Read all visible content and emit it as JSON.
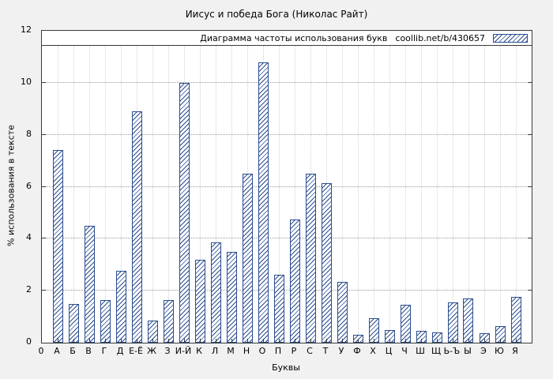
{
  "chart_data": {
    "type": "bar",
    "title": "Иисус и победа Бога (Николас Райт)",
    "legend": {
      "text": "Диаграмма частоты использования букв",
      "link": "coollib.net/b/430657"
    },
    "xlabel": "Буквы",
    "ylabel": "% использования в тексте",
    "origin_label": "0",
    "categories": [
      "А",
      "Б",
      "В",
      "Г",
      "Д",
      "Е-Ё",
      "Ж",
      "З",
      "И-Й",
      "К",
      "Л",
      "М",
      "Н",
      "О",
      "П",
      "Р",
      "С",
      "Т",
      "У",
      "Ф",
      "Х",
      "Ц",
      "Ч",
      "Ш",
      "Щ",
      "Ь-Ъ",
      "Ы",
      "Э",
      "Ю",
      "Я"
    ],
    "values": [
      7.4,
      1.5,
      4.5,
      1.65,
      2.75,
      8.9,
      0.85,
      1.65,
      10.0,
      3.2,
      3.85,
      3.5,
      6.5,
      10.8,
      2.6,
      4.75,
      6.5,
      6.15,
      2.35,
      0.3,
      0.95,
      0.5,
      1.45,
      0.45,
      0.4,
      1.55,
      1.7,
      0.35,
      0.65,
      1.75
    ],
    "ylim": [
      0,
      12
    ],
    "yticks": [
      0,
      2,
      4,
      6,
      8,
      10,
      12
    ],
    "grid": true,
    "legend_position": "top",
    "bar_color": "#2b4d8e",
    "plot_background": "#ffffff",
    "page_background": "#f1f1f1"
  }
}
